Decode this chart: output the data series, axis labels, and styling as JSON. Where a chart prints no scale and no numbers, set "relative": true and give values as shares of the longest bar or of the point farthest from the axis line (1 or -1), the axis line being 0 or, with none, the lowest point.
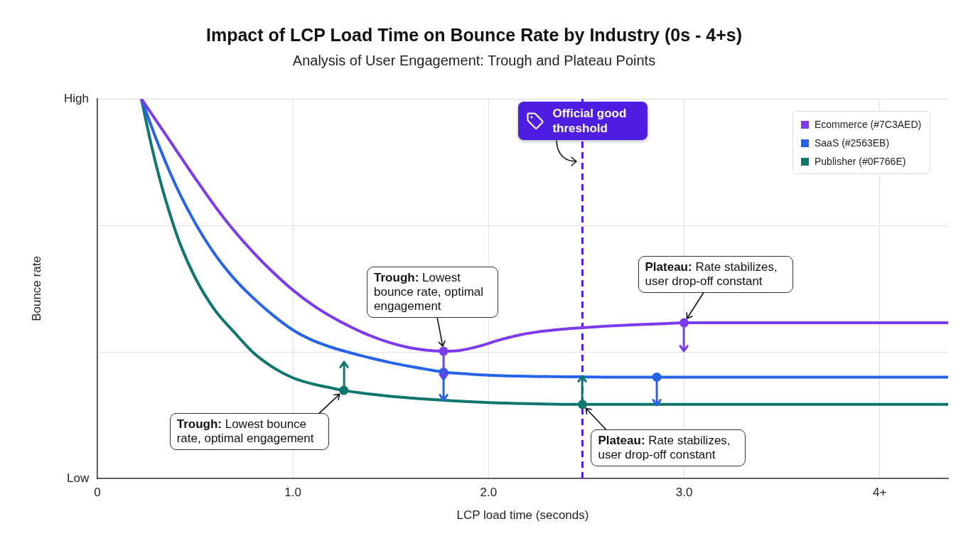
{
  "chart_data": {
    "type": "line",
    "title": "Impact of LCP Load Time on Bounce Rate by Industry (0s - 4+s)",
    "subtitle": "Analysis of User Engagement: Trough and Plateau Points",
    "xlabel": "LCP load time (seconds)",
    "ylabel": "Bounce rate",
    "relative": true,
    "xlim": [
      0,
      4.35
    ],
    "xticks": [
      0,
      {
        "value": 1,
        "label": "1.0"
      },
      {
        "value": 2,
        "label": "2.0"
      },
      {
        "value": 3,
        "label": "3.0"
      },
      {
        "value": 4,
        "label": "4+"
      }
    ],
    "grid": true,
    "legend": "top right",
    "marker": "none",
    "series": [
      {
        "name": "Ecommerce (#7C3AED)",
        "color": "#7c3aed",
        "x": [
          0.225,
          0.3,
          0.4,
          0.5,
          0.6,
          0.7,
          0.8,
          0.9,
          1.0,
          1.1,
          1.2,
          1.3,
          1.4,
          1.5,
          1.6,
          1.7,
          1.77,
          1.85,
          1.95,
          2.05,
          2.15,
          2.25,
          2.35,
          2.48,
          2.6,
          2.75,
          2.9,
          3.0,
          4.35
        ],
        "values": [
          1,
          0.943,
          0.867,
          0.791,
          0.718,
          0.652,
          0.594,
          0.542,
          0.496,
          0.457,
          0.425,
          0.398,
          0.375,
          0.357,
          0.344,
          0.337,
          0.335,
          0.337,
          0.348,
          0.364,
          0.377,
          0.386,
          0.392,
          0.397,
          0.401,
          0.405,
          0.408,
          0.41,
          0.41
        ]
      },
      {
        "name": "SaaS (#2563EB)",
        "color": "#2563eb",
        "x": [
          0.225,
          0.3,
          0.4,
          0.5,
          0.6,
          0.7,
          0.8,
          0.9,
          1.0,
          1.1,
          1.2,
          1.3,
          1.4,
          1.5,
          1.6,
          1.7,
          1.77,
          1.9,
          2.0,
          2.2,
          2.4,
          2.6,
          2.86,
          4.35
        ],
        "values": [
          1,
          0.895,
          0.773,
          0.673,
          0.591,
          0.526,
          0.474,
          0.429,
          0.391,
          0.364,
          0.345,
          0.33,
          0.317,
          0.305,
          0.295,
          0.286,
          0.28,
          0.275,
          0.272,
          0.269,
          0.268,
          0.267,
          0.267,
          0.267
        ]
      },
      {
        "name": "Publisher (#0F766E)",
        "color": "#0f766e",
        "x": [
          0.225,
          0.275,
          0.325,
          0.375,
          0.425,
          0.5,
          0.6,
          0.7,
          0.8,
          0.9,
          1.0,
          1.1,
          1.2,
          1.26,
          1.4,
          1.6,
          1.8,
          2.0,
          2.2,
          2.48,
          4.35
        ],
        "values": [
          1,
          0.88,
          0.777,
          0.69,
          0.615,
          0.529,
          0.444,
          0.385,
          0.33,
          0.292,
          0.265,
          0.249,
          0.238,
          0.232,
          0.222,
          0.212,
          0.205,
          0.2,
          0.197,
          0.195,
          0.195
        ]
      },
      {
        "type": "scatter",
        "color": "#7c3aed",
        "marker": "circle",
        "x": [
          1.77,
          3.0
        ],
        "values": [
          0.335,
          0.41
        ]
      },
      {
        "type": "scatter",
        "color": "#2563eb",
        "marker": "circle",
        "x": [
          1.77,
          2.86
        ],
        "values": [
          0.28,
          0.267
        ]
      },
      {
        "type": "scatter",
        "color": "#0f766e",
        "marker": "circle",
        "x": [
          1.26,
          2.48
        ],
        "values": [
          0.232,
          0.195
        ]
      }
    ],
    "ref_lines": [
      {
        "axis": "x",
        "value": 2.48,
        "label": "Official good threshold",
        "color": "#4f1ddf",
        "line_style": "dashed"
      }
    ],
    "annotations": [
      {
        "text": "Trough: Lowest bounce rate, optimal engagement",
        "x": 1.77,
        "y": 0.335
      },
      {
        "text": "Plateau: Rate stabilizes, user drop-off constant",
        "x": 3.0,
        "y": 0.41
      },
      {
        "text": "Trough: Lowest bounce rate, optimal engagement",
        "x": 1.26,
        "y": 0.232
      },
      {
        "text": "Plateau: Rate stabilizes, user drop-off constant",
        "x": 2.48,
        "y": 0.195
      },
      "High",
      "Low"
    ]
  }
}
